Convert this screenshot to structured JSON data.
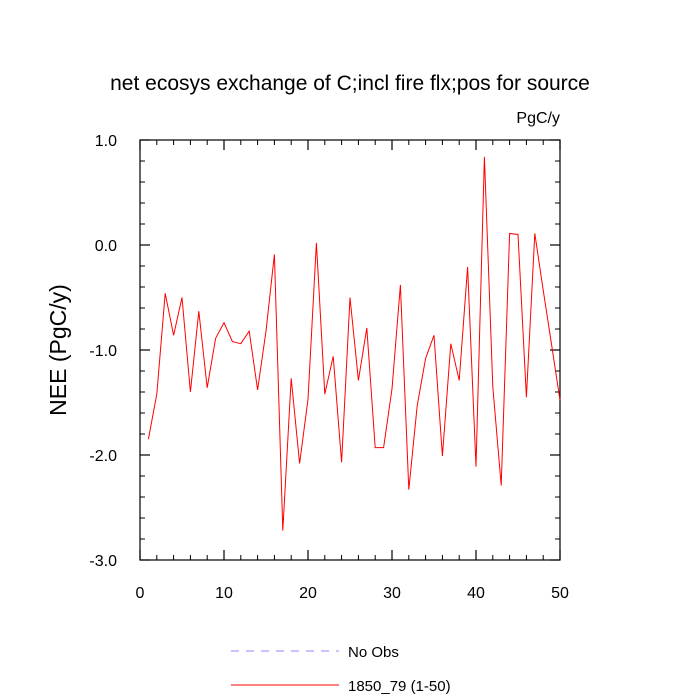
{
  "chart_data": {
    "type": "line",
    "title": "net ecosys exchange of C;incl fire flx;pos for source",
    "units_label": "PgC/y",
    "ylabel": "NEE  (PgC/y)",
    "xlabel": "",
    "xlim": [
      0,
      50
    ],
    "ylim": [
      -3.0,
      1.0
    ],
    "x_ticks": [
      0,
      10,
      20,
      30,
      40,
      50
    ],
    "x_tick_labels": [
      "0",
      "10",
      "20",
      "30",
      "40",
      "50"
    ],
    "y_ticks": [
      1.0,
      0.0,
      -1.0,
      -2.0,
      -3.0
    ],
    "y_tick_labels": [
      "1.0",
      "0.0",
      "-1.0",
      "-2.0",
      "-3.0"
    ],
    "grid": false,
    "legend_position": "bottom",
    "series": [
      {
        "name": "No Obs",
        "color": "#8a8aff",
        "dash": "dashed",
        "x": [],
        "values": []
      },
      {
        "name": "1850_79 (1-50)",
        "color": "#ff0000",
        "dash": "solid",
        "x": [
          1,
          2,
          3,
          4,
          5,
          6,
          7,
          8,
          9,
          10,
          11,
          12,
          13,
          14,
          15,
          16,
          17,
          18,
          19,
          20,
          21,
          22,
          23,
          24,
          25,
          26,
          27,
          28,
          29,
          30,
          31,
          32,
          33,
          34,
          35,
          36,
          37,
          38,
          39,
          40,
          41,
          42,
          43,
          44,
          45,
          46,
          47,
          48,
          49,
          50
        ],
        "values": [
          -1.85,
          -1.42,
          -0.46,
          -0.86,
          -0.5,
          -1.4,
          -0.63,
          -1.36,
          -0.89,
          -0.74,
          -0.92,
          -0.94,
          -0.82,
          -1.38,
          -0.82,
          -0.09,
          -2.72,
          -1.27,
          -2.08,
          -1.47,
          0.02,
          -1.42,
          -1.06,
          -2.07,
          -0.5,
          -1.29,
          -0.79,
          -1.93,
          -1.93,
          -1.37,
          -0.38,
          -2.33,
          -1.53,
          -1.08,
          -0.86,
          -2.01,
          -0.94,
          -1.29,
          -0.21,
          -2.11,
          0.84,
          -1.35,
          -2.29,
          0.11,
          0.1,
          -1.45,
          0.11,
          -0.43,
          -0.95,
          -1.48
        ]
      }
    ]
  }
}
